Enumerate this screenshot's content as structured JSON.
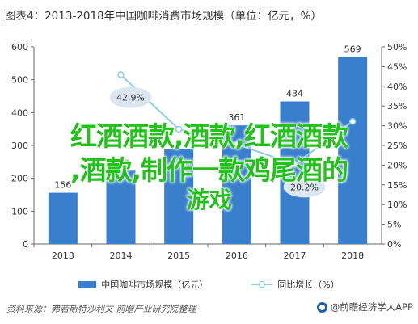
{
  "header": {
    "title": "图表4：2013-2018年中国咖啡消费市场规模（单位：亿元，%）"
  },
  "footer": {
    "source": "资料来源：弗若斯特沙利文 前瞻产业研究院整理",
    "brand": "@前瞻经济学人APP"
  },
  "overlay": {
    "line1": "红酒酒款,酒款,红酒酒款",
    "line2": ",酒款,制作一款鸡尾酒的",
    "line3": "游戏"
  },
  "colors": {
    "bar": "#3a7fce",
    "line": "#8ad0e3",
    "axis": "#666666",
    "grid": "#e6e6e6"
  },
  "chart_data": {
    "type": "bar",
    "categories": [
      "2013",
      "2014",
      "2015",
      "2016",
      "2017",
      "2018"
    ],
    "series": [
      {
        "name": "中国咖啡市场规模（亿元）",
        "type": "bar",
        "axis": "left",
        "values": [
          156,
          223,
          288,
          361,
          434,
          569
        ],
        "labels": [
          "156",
          "223",
          "",
          "361",
          "434",
          "569"
        ]
      },
      {
        "name": "同比增长（%）",
        "type": "line",
        "axis": "right",
        "values": [
          null,
          42.9,
          29.1,
          25.3,
          20.2,
          31.1
        ],
        "labels": [
          "",
          "42.9%",
          "",
          "",
          "20.2%",
          ""
        ]
      }
    ],
    "y_left": {
      "min": 0,
      "max": 600,
      "ticks": [
        "0",
        "100",
        "200",
        "300",
        "400",
        "500",
        "600"
      ]
    },
    "y_right": {
      "min": 0,
      "max": 50,
      "ticks": [
        "0%",
        "5%",
        "10%",
        "15%",
        "20%",
        "25%",
        "30%",
        "35%",
        "40%",
        "45%",
        "50%"
      ]
    },
    "grid": false,
    "legend_position": "bottom"
  }
}
